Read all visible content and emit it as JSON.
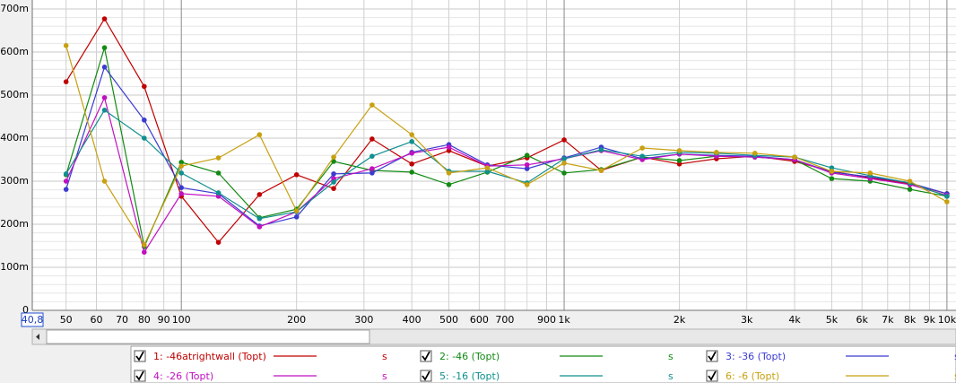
{
  "chart_data": {
    "type": "line",
    "log_x": true,
    "grid": true,
    "xlim": [
      40.8,
      10560
    ],
    "ylim": [
      0,
      0.7
    ],
    "xticks": [
      {
        "value": 40.8,
        "label": "40,8"
      },
      50,
      60,
      70,
      80,
      90,
      100,
      200,
      300,
      400,
      500,
      600,
      700,
      900,
      {
        "value": 1000,
        "label": "1k"
      },
      {
        "value": 2000,
        "label": "2k"
      },
      {
        "value": 3000,
        "label": "3k"
      },
      {
        "value": 4000,
        "label": "4k"
      },
      {
        "value": 5000,
        "label": "5k"
      },
      {
        "value": 6000,
        "label": "6k"
      },
      {
        "value": 7000,
        "label": "7k"
      },
      {
        "value": 8000,
        "label": "8k"
      },
      {
        "value": 9000,
        "label": "9k"
      },
      {
        "value": 10000,
        "label": "10k"
      }
    ],
    "xminor": [
      800
    ],
    "yticks": [
      0,
      {
        "value": 0.1,
        "label": "100m"
      },
      {
        "value": 0.2,
        "label": "200m"
      },
      {
        "value": 0.3,
        "label": "300m"
      },
      {
        "value": 0.4,
        "label": "400m"
      },
      {
        "value": 0.5,
        "label": "500m"
      },
      {
        "value": 0.6,
        "label": "600m"
      },
      {
        "value": 0.7,
        "label": "700m"
      }
    ],
    "yminor": [
      0.02,
      0.04,
      0.06,
      0.08,
      0.12,
      0.14,
      0.16,
      0.18,
      0.22,
      0.24,
      0.26,
      0.28,
      0.32,
      0.34,
      0.36,
      0.38,
      0.42,
      0.44,
      0.46,
      0.48,
      0.52,
      0.54,
      0.56,
      0.58,
      0.62,
      0.64,
      0.66,
      0.68
    ],
    "legend_unit": "s",
    "x": [
      50,
      63,
      80,
      100,
      125,
      160,
      200,
      250,
      315,
      400,
      500,
      630,
      800,
      1000,
      1250,
      1600,
      2000,
      2500,
      3150,
      4000,
      5000,
      6300,
      8000,
      10000
    ],
    "series": [
      {
        "name": "1: -46atrightwall (Topt)",
        "color": "#c00000",
        "values": [
          0.531,
          0.677,
          0.52,
          0.265,
          0.158,
          0.269,
          0.315,
          0.283,
          0.398,
          0.34,
          0.371,
          0.335,
          0.354,
          0.396,
          0.325,
          0.356,
          0.34,
          0.352,
          0.358,
          0.346,
          0.323,
          0.308,
          0.294,
          0.271
        ]
      },
      {
        "name": "2: -46 (Topt)",
        "color": "#138a13",
        "values": [
          0.315,
          0.61,
          0.148,
          0.344,
          0.319,
          0.215,
          0.235,
          0.346,
          0.325,
          0.321,
          0.292,
          0.321,
          0.36,
          0.319,
          0.327,
          0.356,
          0.348,
          0.358,
          0.356,
          0.35,
          0.306,
          0.3,
          0.281,
          0.265
        ]
      },
      {
        "name": "3: -36 (Topt)",
        "color": "#3b3bd0",
        "values": [
          0.281,
          0.565,
          0.442,
          0.285,
          0.271,
          0.196,
          0.217,
          0.317,
          0.319,
          0.367,
          0.385,
          0.338,
          0.329,
          0.354,
          0.379,
          0.352,
          0.363,
          0.36,
          0.358,
          0.35,
          0.321,
          0.31,
          0.296,
          0.271
        ]
      },
      {
        "name": "4: -26 (Topt)",
        "color": "#c010c0",
        "values": [
          0.3,
          0.494,
          0.135,
          0.271,
          0.265,
          0.194,
          0.229,
          0.306,
          0.329,
          0.365,
          0.379,
          0.335,
          0.338,
          0.352,
          0.371,
          0.35,
          0.363,
          0.358,
          0.356,
          0.35,
          0.319,
          0.306,
          0.292,
          0.267
        ]
      },
      {
        "name": "5: -16 (Topt)",
        "color": "#108f8f",
        "values": [
          0.317,
          0.465,
          0.4,
          0.319,
          0.273,
          0.213,
          0.229,
          0.298,
          0.358,
          0.392,
          0.323,
          0.323,
          0.296,
          0.352,
          0.373,
          0.358,
          0.367,
          0.365,
          0.36,
          0.356,
          0.331,
          0.313,
          0.296,
          0.265
        ]
      },
      {
        "name": "6: -6 (Topt)",
        "color": "#c8a010",
        "values": [
          0.615,
          0.3,
          0.152,
          0.335,
          0.354,
          0.408,
          0.231,
          0.356,
          0.477,
          0.408,
          0.319,
          0.331,
          0.292,
          0.342,
          0.325,
          0.377,
          0.371,
          0.367,
          0.365,
          0.356,
          0.323,
          0.319,
          0.3,
          0.252
        ]
      }
    ]
  }
}
